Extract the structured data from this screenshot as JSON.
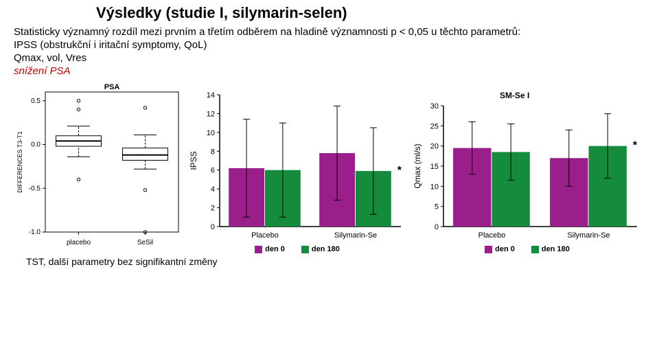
{
  "title": "Výsledky (studie I, silymarin-selen)",
  "lead": "Statisticky významný rozdíl mezi prvním a třetím odběrem na hladině významnosti p < 0,05 u těchto parametrů:",
  "ipss_line": "IPSS (obstrukční i iritační symptomy, QoL)",
  "qmax_line": "Qmax, vol, Vres",
  "psa_line": "snížení PSA",
  "footer": "TST, další parametry bez signifikantní změny",
  "panel_label": "SM-Se I",
  "boxplot": {
    "type": "boxplot",
    "title": "PSA",
    "ylabel": "DIFFERENCES T3-T1",
    "ylim": [
      -1.0,
      0.6
    ],
    "yticks": [
      -1.0,
      -0.5,
      0.0,
      0.5
    ],
    "categories": [
      "placebo",
      "SeSil"
    ],
    "boxes": [
      {
        "q1": -0.02,
        "med": 0.04,
        "q3": 0.1,
        "wlo": -0.14,
        "whi": 0.21,
        "outliers": [
          0.5,
          0.4,
          -0.4
        ]
      },
      {
        "q1": -0.18,
        "med": -0.12,
        "q3": -0.04,
        "wlo": -0.28,
        "whi": 0.11,
        "outliers": [
          0.42,
          -0.52,
          -1.0
        ]
      }
    ],
    "box_fill": "#ffffff",
    "line": "#000000",
    "line_w": 1,
    "bg": "#ffffff",
    "title_fs": 11,
    "tick_fs": 10,
    "ylab_fs": 9
  },
  "ipss_chart": {
    "type": "bar_error",
    "ylabel": "IPSS",
    "ylim": [
      0,
      14
    ],
    "ytick_step": 2,
    "categories": [
      "Placebo",
      "Silymarin-Se"
    ],
    "series": [
      {
        "name": "den 0",
        "color": "#9a1f8a",
        "values": [
          6.2,
          7.8
        ],
        "err": [
          5.2,
          5.0
        ]
      },
      {
        "name": "den 180",
        "color": "#148c3c",
        "values": [
          6.0,
          5.9
        ],
        "err": [
          5.0,
          4.6
        ]
      }
    ],
    "sig_marker": "*",
    "sig_on": 1,
    "bar_group_gap": 0.1,
    "axis_color": "#000000",
    "tick_fs": 11,
    "ylab_fs": 12
  },
  "qmax_chart": {
    "type": "bar_error",
    "ylabel": "Qmax (ml/s)",
    "ylim": [
      0,
      30
    ],
    "ytick_step": 5,
    "categories": [
      "Placebo",
      "Silymarin-Se"
    ],
    "series": [
      {
        "name": "den 0",
        "color": "#9a1f8a",
        "values": [
          19.5,
          17.0
        ],
        "err": [
          6.5,
          7.0
        ]
      },
      {
        "name": "den 180",
        "color": "#148c3c",
        "values": [
          18.5,
          20.0
        ],
        "err": [
          7.0,
          8.0
        ]
      }
    ],
    "sig_marker": "*",
    "sig_on": 1,
    "axis_color": "#000000",
    "tick_fs": 11,
    "ylab_fs": 12
  },
  "legend": {
    "items": [
      {
        "label": "den 0",
        "color": "#9a1f8a"
      },
      {
        "label": "den 180",
        "color": "#148c3c"
      }
    ]
  }
}
